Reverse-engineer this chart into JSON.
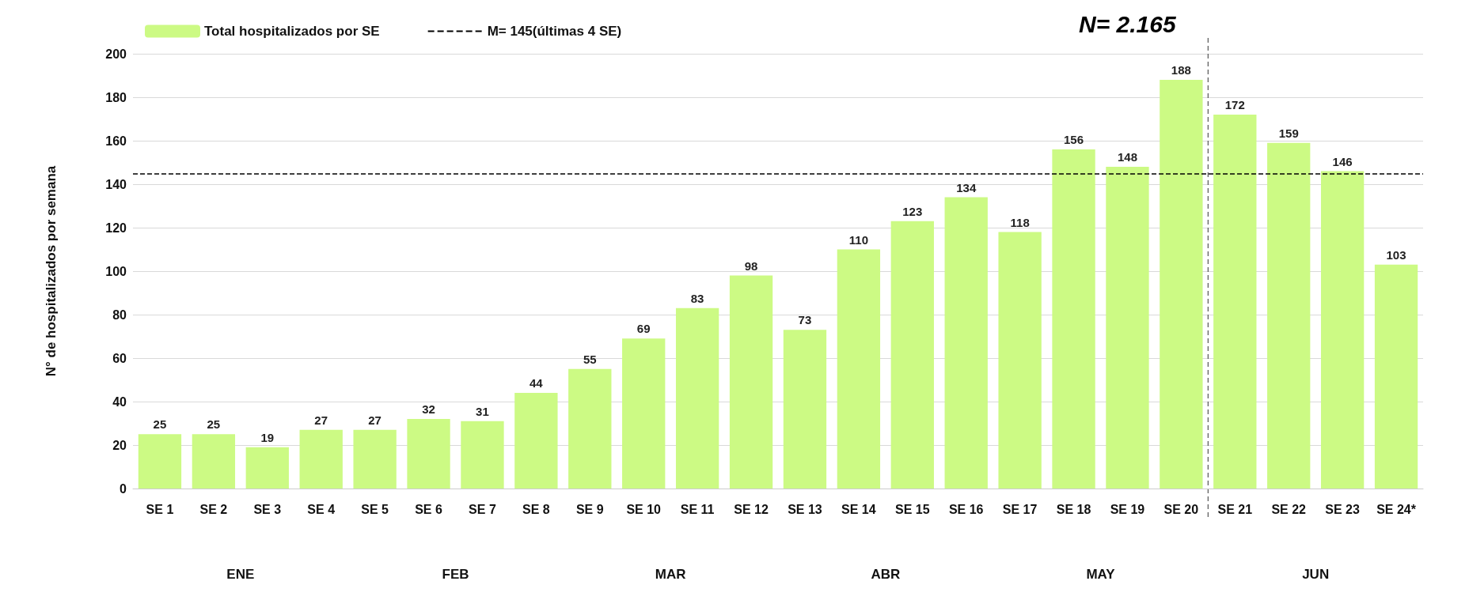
{
  "chart_data": {
    "type": "bar",
    "title": "N= 2.165",
    "ylabel": "N° de hospitalizados por semana",
    "categories": [
      "SE 1",
      "SE 2",
      "SE 3",
      "SE 4",
      "SE 5",
      "SE 6",
      "SE 7",
      "SE 8",
      "SE 9",
      "SE 10",
      "SE 11",
      "SE 12",
      "SE 13",
      "SE 14",
      "SE 15",
      "SE 16",
      "SE 17",
      "SE 18",
      "SE 19",
      "SE 20",
      "SE 21",
      "SE 22",
      "SE 23",
      "SE 24*"
    ],
    "series": [
      {
        "name": "Total hospitalizados por SE",
        "color": "#ccfa84",
        "values": [
          25,
          25,
          19,
          27,
          27,
          32,
          31,
          44,
          55,
          69,
          83,
          98,
          73,
          110,
          123,
          134,
          118,
          156,
          148,
          188,
          172,
          159,
          146,
          103
        ]
      }
    ],
    "ylim": [
      0,
      200
    ],
    "yticks": [
      0,
      20,
      40,
      60,
      80,
      100,
      120,
      140,
      160,
      180,
      200
    ],
    "grid": "y",
    "data_labels": true,
    "legend": "top left",
    "ref_lines": [
      {
        "axis": "y",
        "value": 145,
        "label": "M= 145(últimas 4 SE)",
        "line_style": "dashed",
        "color": "#000000"
      },
      {
        "axis": "x",
        "value": "SE 20",
        "line_style": "dashed",
        "color": "#555555"
      }
    ],
    "annotations": [
      "ENE",
      "FEB",
      "MAR",
      "ABR",
      "MAY",
      "JUN"
    ]
  }
}
